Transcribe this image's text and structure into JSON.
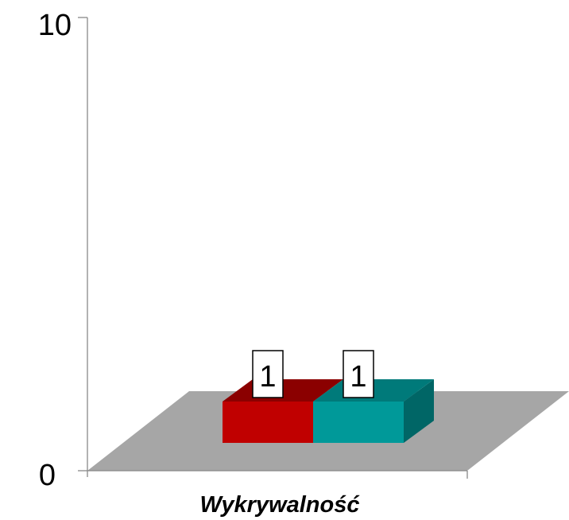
{
  "chart_data": {
    "type": "bar",
    "style": "3d",
    "categories": [
      "Wykrywalność"
    ],
    "series": [
      {
        "values": [
          1
        ],
        "color": "#c00000",
        "top_color": "#8b0000",
        "side_color": "#7a0000"
      },
      {
        "values": [
          1
        ],
        "color": "#009999",
        "top_color": "#007a7a",
        "side_color": "#006666"
      }
    ],
    "ylim": [
      0,
      10
    ],
    "y_ticks": [
      "0",
      "10"
    ],
    "data_labels": [
      "1",
      "1"
    ],
    "floor_color": "#a6a6a6",
    "grid": false,
    "legend": "none"
  }
}
